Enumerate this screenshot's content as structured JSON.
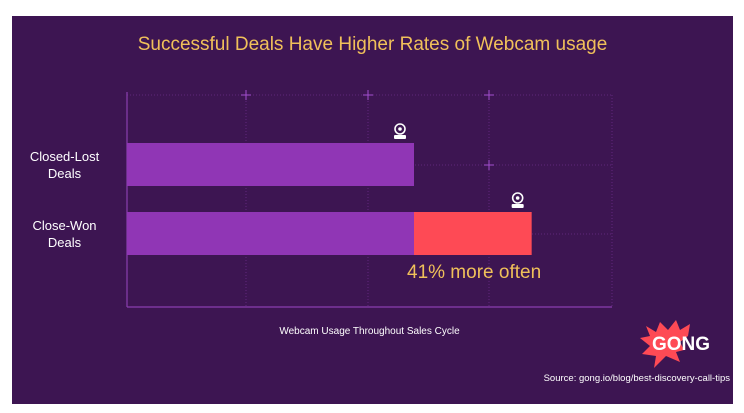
{
  "chart_data": {
    "type": "bar",
    "orientation": "horizontal",
    "title": "Successful Deals Have Higher Rates of Webcam usage",
    "xlabel": "Webcam Usage Throughout Sales Cycle",
    "ylabel": "",
    "categories": [
      "Closed-Lost Deals",
      "Close-Won Deals"
    ],
    "category_lines": [
      [
        "Closed-Lost",
        "Deals"
      ],
      [
        "Close-Won",
        "Deals"
      ]
    ],
    "values": [
      1.0,
      1.41
    ],
    "baseline_value": 1.0,
    "annotation": "41% more often",
    "grid": true,
    "colors": {
      "bar": "#9036b5",
      "increase": "#fe4a55",
      "background": "#3d1552",
      "title": "#f0c05a",
      "grid": "#8a3fae"
    },
    "icon": "webcam-icon"
  },
  "source": "Source: gong.io/blog/best-discovery-call-tips",
  "logo": {
    "text": "GONG",
    "color": "#fe4a55"
  }
}
